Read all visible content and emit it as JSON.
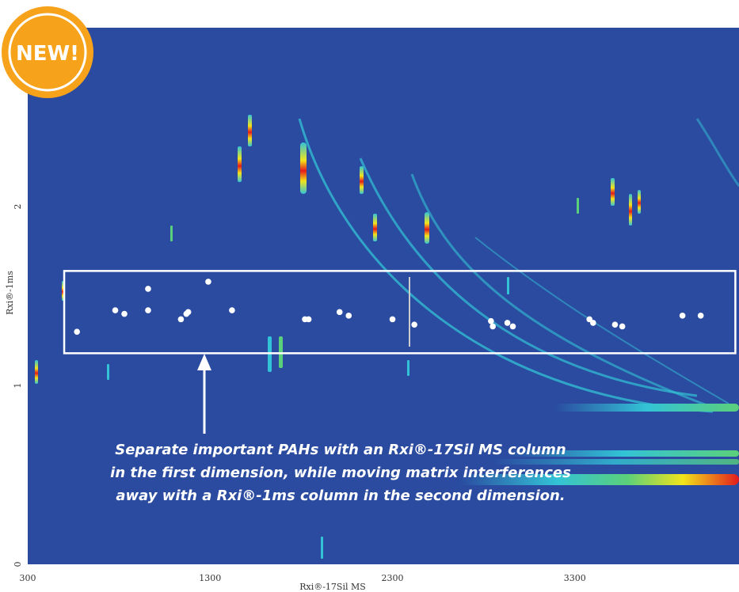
{
  "badge": {
    "label": "NEW!",
    "color": "#f7a21b"
  },
  "colors": {
    "background": "#2a4ba0",
    "highlight": "#ffffff",
    "peak_high": "#e31a1c",
    "peak_mid": "#f2e41b",
    "peak_low": "#33c3d6"
  },
  "annotation": {
    "lines": [
      "Separate important PAHs with an Rxi®-17Sil MS column",
      "in the first dimension, while moving matrix interferences",
      "away with a Rxi®-1ms column in the second dimension."
    ]
  },
  "chart_data": {
    "type": "scatter",
    "title": "",
    "xlabel": "Rxi®-17Sil MS",
    "ylabel": "Rxi®-1ms",
    "xlim": [
      300,
      4200
    ],
    "ylim": [
      0,
      3
    ],
    "xticks": [
      300,
      1300,
      2300,
      3300
    ],
    "yticks": [
      0,
      1,
      2
    ],
    "highlight_box": {
      "x": [
        500,
        4180
      ],
      "y": [
        1.18,
        1.64
      ]
    },
    "series": [
      {
        "values": [
          [
            570,
            1.3
          ],
          [
            780,
            1.42
          ],
          [
            830,
            1.4
          ],
          [
            960,
            1.54
          ],
          [
            960,
            1.42
          ],
          [
            1140,
            1.37
          ],
          [
            1170,
            1.4
          ],
          [
            1180,
            1.41
          ],
          [
            1290,
            1.58
          ],
          [
            1420,
            1.42
          ],
          [
            1820,
            1.37
          ],
          [
            1840,
            1.37
          ],
          [
            2010,
            1.41
          ],
          [
            2060,
            1.39
          ],
          [
            2300,
            1.37
          ],
          [
            2420,
            1.34
          ],
          [
            2840,
            1.36
          ],
          [
            2850,
            1.33
          ],
          [
            2930,
            1.35
          ],
          [
            2960,
            1.33
          ],
          [
            3380,
            1.37
          ],
          [
            3400,
            1.35
          ],
          [
            3520,
            1.34
          ],
          [
            3560,
            1.33
          ],
          [
            3890,
            1.39
          ],
          [
            3990,
            1.39
          ]
        ]
      }
    ]
  }
}
